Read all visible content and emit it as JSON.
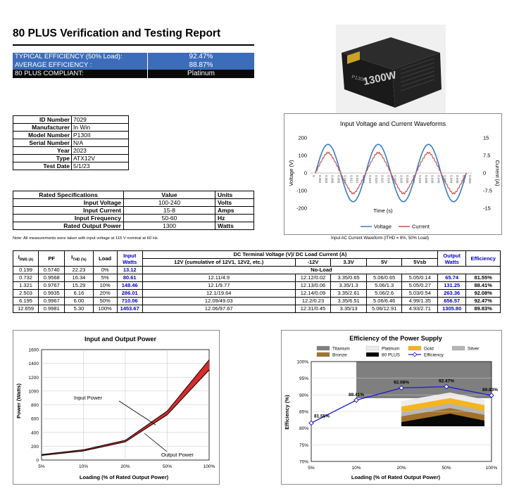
{
  "report": {
    "title": "80 PLUS Verification and Testing Report"
  },
  "summary": [
    {
      "label": "TYPICAL EFFICIENCY (50% Load):",
      "value": "92.47%"
    },
    {
      "label": "AVERAGE EFFICIENCY :",
      "value": "88.87%"
    },
    {
      "label": "80 PLUS COMPLIANT:",
      "value": "Platinum"
    }
  ],
  "ident": [
    {
      "k": "ID Number",
      "v": "7029"
    },
    {
      "k": "Manufacturer",
      "v": "In Win"
    },
    {
      "k": "Model Number",
      "v": "P130II"
    },
    {
      "k": "Serial Number",
      "v": "N/A"
    },
    {
      "k": "Year",
      "v": "2023"
    },
    {
      "k": "Type",
      "v": "ATX12V"
    },
    {
      "k": "Test Date",
      "v": "5/1/23"
    }
  ],
  "rated": {
    "headers": [
      "Rated Specifications",
      "Value",
      "Units"
    ],
    "rows": [
      {
        "k": "Input Voltage",
        "v": "100-240",
        "u": "Volts"
      },
      {
        "k": "Input Current",
        "v": "15-8",
        "u": "Amps"
      },
      {
        "k": "Input Frequency",
        "v": "50-60",
        "u": "Hz"
      },
      {
        "k": "Rated Output Power",
        "v": "1300",
        "u": "Watts"
      }
    ]
  },
  "note": "Note: All measurements were taken with input voltage at 115 V nominal at 60 Hz.",
  "wave_caption": "Input AC Current Waveform (ITHD = 6%, 50% Load)",
  "psu_photo": {
    "label_large": "1300W",
    "label_small": "P130II"
  },
  "main_table": {
    "h_irms": "I",
    "h_irms_sub": "RMS (A)",
    "h_pf": "PF",
    "h_ithd": "I",
    "h_ithd_sub": "THD (%)",
    "h_load": "Load",
    "h_input": "Input Watts",
    "h_dc": "DC Terminal Voltage (V)/ DC Load Current (A)",
    "h_12v": "12V (cumulative of 12V1, 12V2, etc.)",
    "h_m12": "-12V",
    "h_33": "3.3V",
    "h_5": "5V",
    "h_5sb": "5Vsb",
    "h_output": "Output Watts",
    "h_eff": "Efficiency",
    "noload": "No-Load",
    "row0": {
      "irms": "0.199",
      "pf": "0.5740",
      "ithd": "22.23",
      "load": "0%",
      "input": "13.12"
    },
    "rows": [
      {
        "irms": "0.732",
        "pf": "0.9568",
        "ithd": "16.34",
        "load": "5%",
        "input": "80.61",
        "v12": "12.11/4.9",
        "vm12": "12.12/0.02",
        "v33": "3.35/0.65",
        "v5": "5.06/0.65",
        "v5sb": "5.05/0.14",
        "output": "65.74",
        "eff": "81.55%"
      },
      {
        "irms": "1.321",
        "pf": "0.9767",
        "ithd": "15.29",
        "load": "10%",
        "input": "148.46",
        "v12": "12.1/9.77",
        "vm12": "12.13/0.06",
        "v33": "3.35/1.3",
        "v5": "5.06/1.3",
        "v5sb": "5.05/0.27",
        "output": "131.25",
        "eff": "88.41%"
      },
      {
        "irms": "2.503",
        "pf": "0.9935",
        "ithd": "6.16",
        "load": "20%",
        "input": "286.01",
        "v12": "12.1/19.64",
        "vm12": "12.14/0.09",
        "v33": "3.35/2.61",
        "v5": "5.06/2.6",
        "v5sb": "5.03/0.54",
        "output": "263.36",
        "eff": "92.08%"
      },
      {
        "irms": "6.195",
        "pf": "0.9967",
        "ithd": "6.00",
        "load": "50%",
        "input": "710.06",
        "v12": "12.09/49.03",
        "vm12": "12.2/0.23",
        "v33": "3.35/6.51",
        "v5": "5.06/6.46",
        "v5sb": "4.99/1.35",
        "output": "656.57",
        "eff": "92.47%"
      },
      {
        "irms": "12.659",
        "pf": "0.9981",
        "ithd": "5.30",
        "load": "100%",
        "input": "1453.67",
        "v12": "12.06/97.67",
        "vm12": "12.31/0.45",
        "v33": "3.35/13",
        "v5": "5.06/12.91",
        "v5sb": "4.93/2.71",
        "output": "1305.80",
        "eff": "89.83%"
      }
    ]
  },
  "chart_data": [
    {
      "type": "line",
      "title": "Input Voltage and Current Waveforms",
      "xlabel": "Time (s)",
      "ylabel": "Voltage (V)",
      "y2label": "Current (A)",
      "ylim": [
        -200,
        200
      ],
      "y2lim": [
        -15,
        15
      ],
      "yticks": [
        "200",
        "100",
        "0",
        "-100",
        "-200"
      ],
      "y2ticks": [
        "15",
        "7.5",
        "0",
        "-7.5",
        "-15"
      ],
      "xticks": [
        "0",
        "0.002",
        "0.004",
        "0.006",
        "0.008",
        "0.010",
        "0.012",
        "0.014",
        "0.016",
        "0.018",
        "0.020",
        "0.022",
        "0.024",
        "0.026",
        "0.028",
        "0.030",
        "0.032",
        "0.034",
        "0.036",
        "0.038",
        "0.040",
        "0.042",
        "0.044",
        "0.046",
        "0.048",
        "0.050"
      ],
      "series": [
        {
          "name": "Voltage",
          "color": "#3a7cc6",
          "amplitude": 163,
          "cycles": 3
        },
        {
          "name": "Current",
          "color": "#c0504d",
          "amplitude": 8.7,
          "cycles": 3
        }
      ],
      "legend": "bottom"
    },
    {
      "type": "line",
      "title": "Input and Output Power",
      "xlabel": "Loading (% of Rated Output Power)",
      "ylabel": "Power (Watts)",
      "categories": [
        "5%",
        "10%",
        "20%",
        "50%",
        "100%"
      ],
      "ylim": [
        0,
        1600
      ],
      "yticks": [
        "0",
        "200",
        "400",
        "600",
        "800",
        "1000",
        "1200",
        "1400",
        "1600"
      ],
      "series": [
        {
          "name": "Input Power",
          "values": [
            80.61,
            148.46,
            286.01,
            710.06,
            1453.67
          ]
        },
        {
          "name": "Output Power",
          "values": [
            65.74,
            131.25,
            263.36,
            656.57,
            1305.8
          ]
        }
      ],
      "annotations": [
        "Input Power",
        "Output Power"
      ]
    },
    {
      "type": "line",
      "title": "Efficiency of the Power Supply",
      "xlabel": "Loading (% of Rated Output Power)",
      "ylabel": "Efficiency (%)",
      "categories": [
        "5%",
        "10%",
        "20%",
        "50%",
        "100%"
      ],
      "ylim": [
        70,
        100
      ],
      "yticks": [
        "100%",
        "95%",
        "90%",
        "85%",
        "80%",
        "75%",
        "70%"
      ],
      "series": [
        {
          "name": "Efficiency",
          "values": [
            81.55,
            88.41,
            92.08,
            92.47,
            89.83
          ],
          "color": "#1a1ad6"
        }
      ],
      "data_labels": [
        "81.55%",
        "88.41%",
        "92.08%",
        "92.47%",
        "89.83%"
      ],
      "legend_items": [
        {
          "name": "Titanium",
          "color": "#7f7f7f"
        },
        {
          "name": "Platinum",
          "color": "#ececec"
        },
        {
          "name": "Gold",
          "color": "#f4b521"
        },
        {
          "name": "Silver",
          "color": "#b4b4b4"
        },
        {
          "name": "Bronze",
          "color": "#a2702a"
        },
        {
          "name": "80 PLUS",
          "color": "#080808"
        },
        {
          "name": "Efficiency",
          "color": "#1a1ad6"
        }
      ],
      "legend": "top"
    }
  ]
}
